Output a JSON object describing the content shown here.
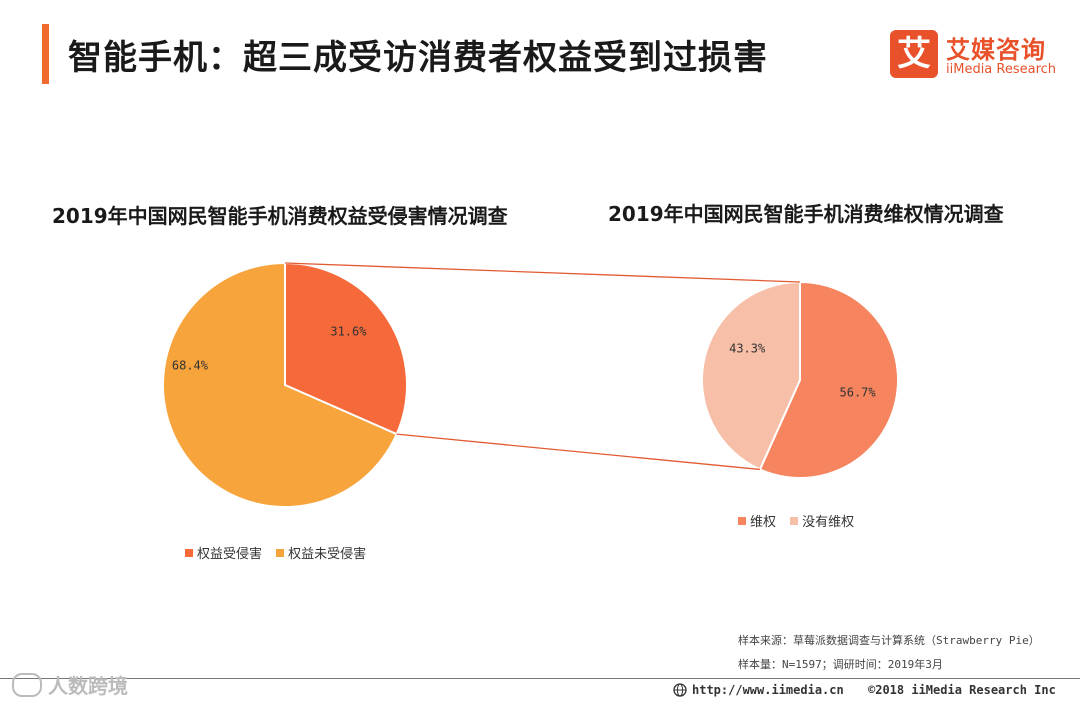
{
  "header": {
    "title": "智能手机：超三成受访消费者权益受到过损害"
  },
  "logo": {
    "mark": "艾",
    "cn": "艾媒咨询",
    "en": "iiMedia Research"
  },
  "colors": {
    "accent": "#ef6a2c",
    "harmed": "#f5693a",
    "not_harmed": "#f7a43c",
    "defended": "#f5845f",
    "not_defended": "#f8bfa8"
  },
  "chart_data": [
    {
      "type": "pie",
      "title": "2019年中国网民智能手机消费权益受侵害情况调查",
      "slices": [
        {
          "name": "权益受侵害",
          "value": 31.6,
          "label": "31.6%"
        },
        {
          "name": "权益未受侵害",
          "value": 68.4,
          "label": "68.4%"
        }
      ],
      "legend": "bottom"
    },
    {
      "type": "pie",
      "title": "2019年中国网民智能手机消费维权情况调查",
      "slices": [
        {
          "name": "维权",
          "value": 56.7,
          "label": "56.7%"
        },
        {
          "name": "没有维权",
          "value": 43.3,
          "label": "43.3%"
        }
      ],
      "legend": "bottom"
    }
  ],
  "source": {
    "line1": "样本来源：草莓派数据调查与计算系统（Strawberry Pie）",
    "line2": "样本量：N=1597；调研时间：2019年3月"
  },
  "footer": {
    "url": "http://www.iimedia.cn",
    "copyright": "©2018  iiMedia Research  Inc"
  },
  "watermark": "人数跨境"
}
